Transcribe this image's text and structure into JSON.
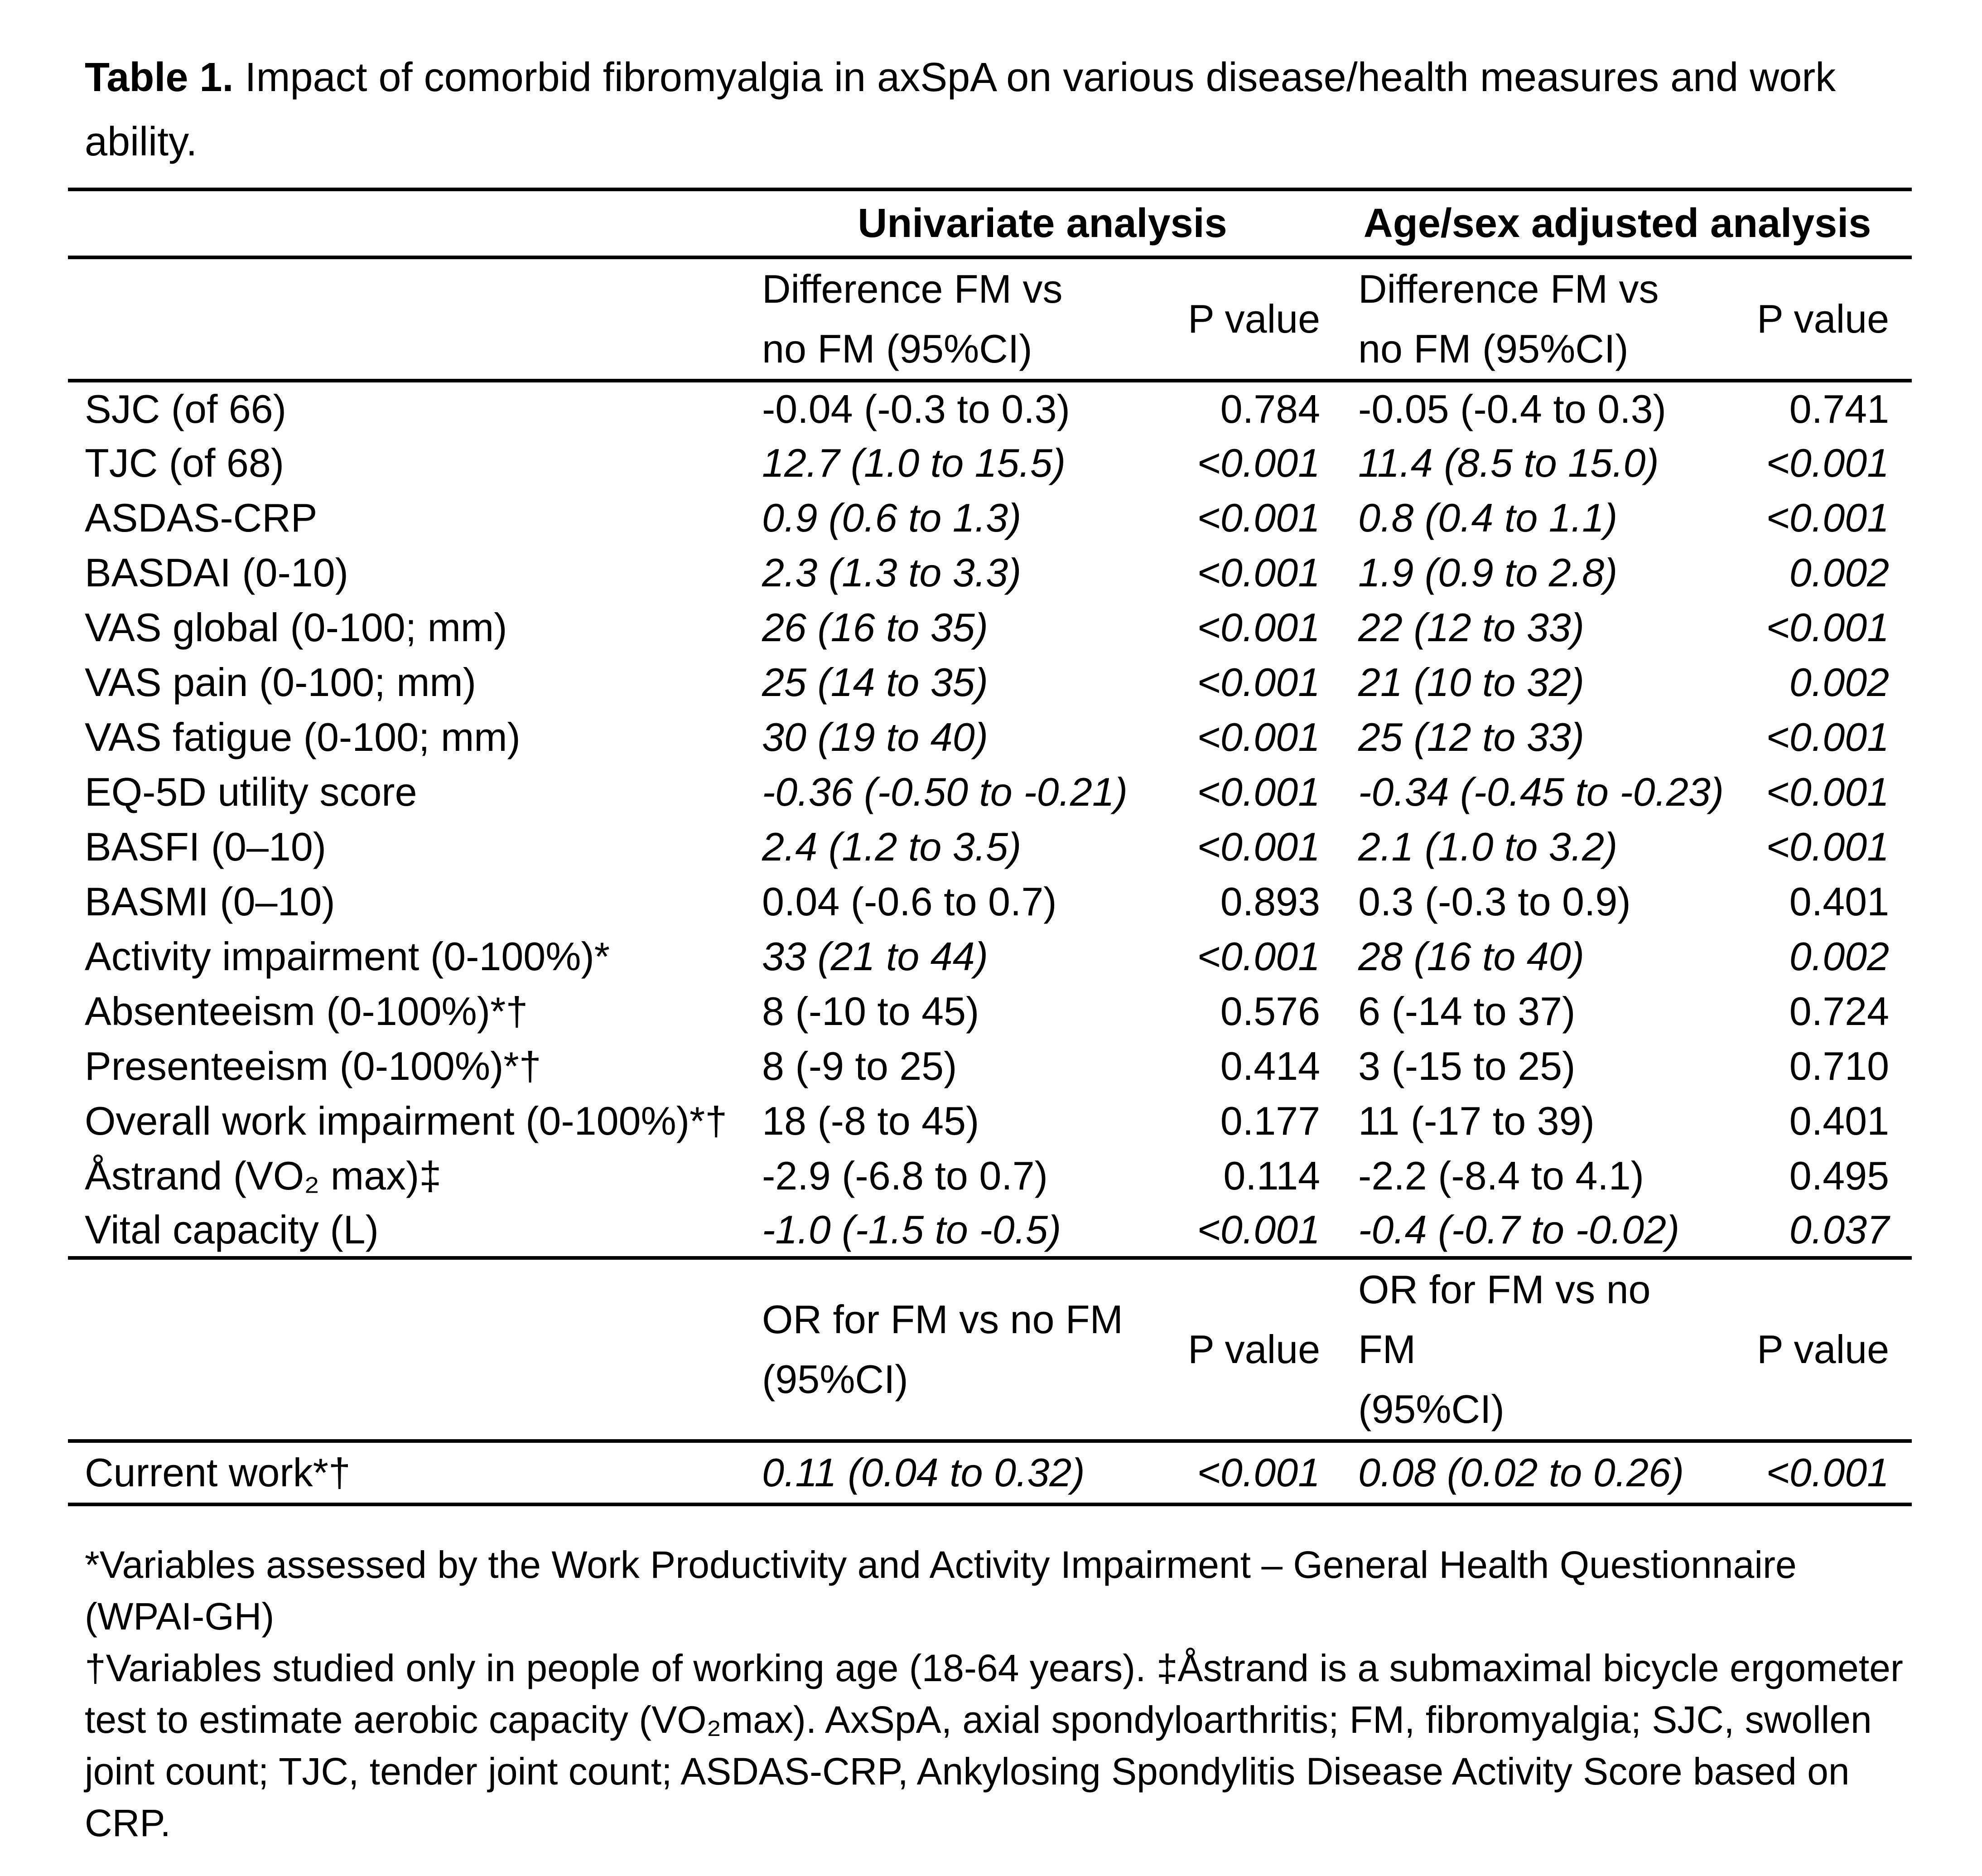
{
  "title": {
    "bold": "Table 1.",
    "rest": "Impact of comorbid fibromyalgia in axSpA on various disease/health measures and work ability."
  },
  "table": {
    "group_headers": [
      "Univariate analysis",
      "Age/sex adjusted analysis"
    ],
    "sub_header": {
      "diff1": {
        "line1": "Difference FM vs",
        "line2": "no FM (95%CI)"
      },
      "p1": "P value",
      "diff2": {
        "line1": "Difference FM vs",
        "line2": "no FM (95%CI)"
      },
      "p2": "P value"
    },
    "rows": [
      {
        "label": "SJC (of 66)",
        "sig": false,
        "cells": [
          "-0.04 (-0.3 to 0.3)",
          "0.784",
          "-0.05 (-0.4 to 0.3)",
          "0.741"
        ]
      },
      {
        "label": "TJC (of 68)",
        "sig": true,
        "cells": [
          "12.7 (1.0 to 15.5)",
          "<0.001",
          "11.4 (8.5 to 15.0)",
          "<0.001"
        ]
      },
      {
        "label": "ASDAS-CRP",
        "sig": true,
        "cells": [
          "0.9 (0.6 to 1.3)",
          "<0.001",
          "0.8 (0.4 to 1.1)",
          "<0.001"
        ]
      },
      {
        "label": "BASDAI (0-10)",
        "sig": true,
        "cells": [
          "2.3 (1.3 to 3.3)",
          "<0.001",
          "1.9 (0.9 to 2.8)",
          "0.002"
        ]
      },
      {
        "label": "VAS global (0-100; mm)",
        "sig": true,
        "cells": [
          "26 (16 to 35)",
          "<0.001",
          "22 (12 to 33)",
          "<0.001"
        ]
      },
      {
        "label": "VAS pain (0-100; mm)",
        "sig": true,
        "cells": [
          "25 (14 to 35)",
          "<0.001",
          "21 (10 to 32)",
          "0.002"
        ]
      },
      {
        "label": "VAS fatigue (0-100; mm)",
        "sig": true,
        "cells": [
          "30 (19 to 40)",
          "<0.001",
          "25 (12 to 33)",
          "<0.001"
        ]
      },
      {
        "label": "EQ-5D utility score",
        "sig": true,
        "cells": [
          "-0.36 (-0.50 to -0.21)",
          "<0.001",
          "-0.34 (-0.45 to -0.23)",
          "<0.001"
        ]
      },
      {
        "label": "BASFI (0–10)",
        "sig": true,
        "cells": [
          "2.4 (1.2 to 3.5)",
          "<0.001",
          "2.1 (1.0 to 3.2)",
          "<0.001"
        ]
      },
      {
        "label": "BASMI (0–10)",
        "sig": false,
        "cells": [
          "0.04 (-0.6 to 0.7)",
          "0.893",
          "0.3 (-0.3 to 0.9)",
          "0.401"
        ]
      },
      {
        "label": "Activity impairment (0-100%)*",
        "sig": true,
        "cells": [
          "33 (21 to 44)",
          "<0.001",
          "28 (16 to 40)",
          "0.002"
        ]
      },
      {
        "label": "Absenteeism (0-100%)*†",
        "sig": false,
        "cells": [
          "8 (-10 to 45)",
          "0.576",
          "6 (-14 to 37)",
          "0.724"
        ]
      },
      {
        "label": "Presenteeism (0-100%)*†",
        "sig": false,
        "cells": [
          "8 (-9 to 25)",
          "0.414",
          "3 (-15 to 25)",
          "0.710"
        ]
      },
      {
        "label": "Overall work impairment (0-100%)*†",
        "sig": false,
        "cells": [
          "18 (-8 to 45)",
          "0.177",
          "11 (-17 to 39)",
          "0.401"
        ]
      },
      {
        "label": "Åstrand (VO₂ max)‡",
        "sig": false,
        "cells": [
          "-2.9 (-6.8 to 0.7)",
          "0.114",
          "-2.2 (-8.4 to 4.1)",
          "0.495"
        ]
      },
      {
        "label": "Vital capacity (L)",
        "sig": true,
        "cells": [
          "-1.0 (-1.5 to -0.5)",
          "<0.001",
          "-0.4 (-0.7 to -0.02)",
          "0.037"
        ]
      }
    ],
    "or_header": {
      "or1": {
        "line1": "OR for FM vs no FM",
        "line2": "(95%CI)"
      },
      "p1": "P value",
      "or2": {
        "line1": "OR for FM vs no FM",
        "line2": "(95%CI)"
      },
      "p2": "P value"
    },
    "or_rows": [
      {
        "label": "Current work*†",
        "sig": true,
        "cells": [
          "0.11 (0.04 to 0.32)",
          "<0.001",
          "0.08 (0.02 to 0.26)",
          "<0.001"
        ]
      }
    ]
  },
  "footnotes": {
    "line1": "*Variables assessed by the Work Productivity and Activity Impairment – General Health Questionnaire (WPAI-GH)",
    "para2": "†Variables studied only in people of working age (18-64 years). ‡Åstrand is a submaximal bicycle ergometer test to estimate aerobic capacity (VO₂max). AxSpA, axial spondyloarthritis; FM, fibromyalgia; SJC, swollen joint count; TJC, tender joint count; ASDAS-CRP, Ankylosing Spondylitis Disease Activity Score based on CRP."
  }
}
